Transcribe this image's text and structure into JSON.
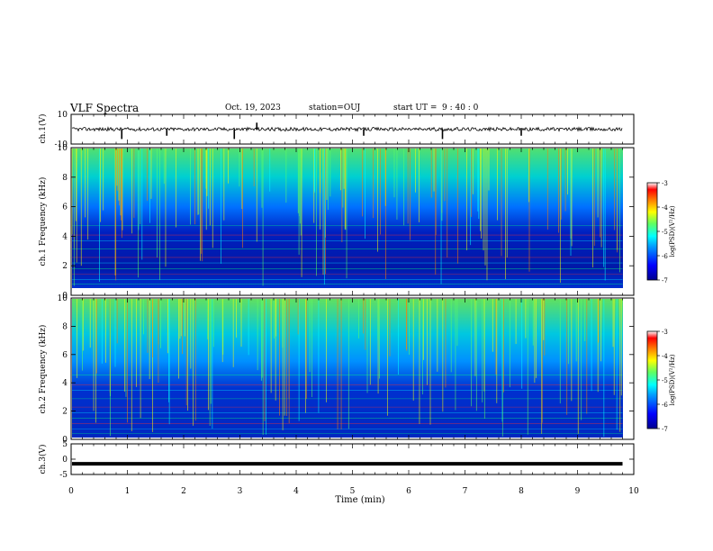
{
  "header": {
    "title": "VLF Spectra",
    "date": "Oct. 19, 2023",
    "station": "station=OUJ",
    "start_label": "start  UT =",
    "start_time": "9 : 40 : 0"
  },
  "chart_data": [
    {
      "type": "line",
      "panel": "ch1-waveform",
      "ylabel": "ch.1(V)",
      "ylim": [
        -10,
        10
      ],
      "yticks": [
        "10",
        "-10"
      ],
      "x": [
        0,
        0.8,
        0.9,
        1.7,
        2.9,
        3.3,
        5.2,
        6.6,
        8.0
      ],
      "values_note_free": [
        0,
        0,
        -3,
        -2,
        -3,
        2,
        -2,
        -3,
        -2
      ],
      "baseline": 0
    },
    {
      "type": "heatmap",
      "panel": "ch1-spectrogram",
      "ylabel": "ch.1 Frequency (kHz)",
      "ylim": [
        0,
        10
      ],
      "yticks": [
        "0",
        "2",
        "4",
        "6",
        "8",
        "10"
      ],
      "colorbar_label": "log(PSD)(V²/Hz)",
      "colorbar_range": [
        -7,
        -3
      ],
      "colorbar_ticks": [
        "-3",
        "-4",
        "-5",
        "-6",
        "-7"
      ]
    },
    {
      "type": "heatmap",
      "panel": "ch2-spectrogram",
      "ylabel": "ch.2 Frequency (kHz)",
      "ylim": [
        0,
        10
      ],
      "yticks": [
        "0",
        "2",
        "4",
        "6",
        "8",
        "10"
      ],
      "colorbar_label": "log(PSD)(V²/Hz)",
      "colorbar_range": [
        -7,
        -3
      ],
      "colorbar_ticks": [
        "-3",
        "-4",
        "-5",
        "-6",
        "-7"
      ]
    },
    {
      "type": "line",
      "panel": "ch3-waveform",
      "ylabel": "ch.3(V)",
      "ylim": [
        -5,
        5
      ],
      "yticks": [
        "5",
        "0",
        "-5"
      ],
      "x": [
        0,
        9.8
      ],
      "values": [
        -1.5,
        -1.5
      ]
    }
  ],
  "xaxis": {
    "label": "Time (min)",
    "ticks": [
      "0",
      "1",
      "2",
      "3",
      "4",
      "5",
      "6",
      "7",
      "8",
      "9",
      "10"
    ],
    "xlim": [
      0,
      10
    ],
    "data_end": 9.8
  },
  "colors": {
    "spectrogram_base": "#0a2aa8",
    "colormap": [
      "#00008f",
      "#0000ff",
      "#00a0ff",
      "#00ffff",
      "#60ff60",
      "#ffff00",
      "#ff8000",
      "#ff0000",
      "#ffffff"
    ]
  }
}
